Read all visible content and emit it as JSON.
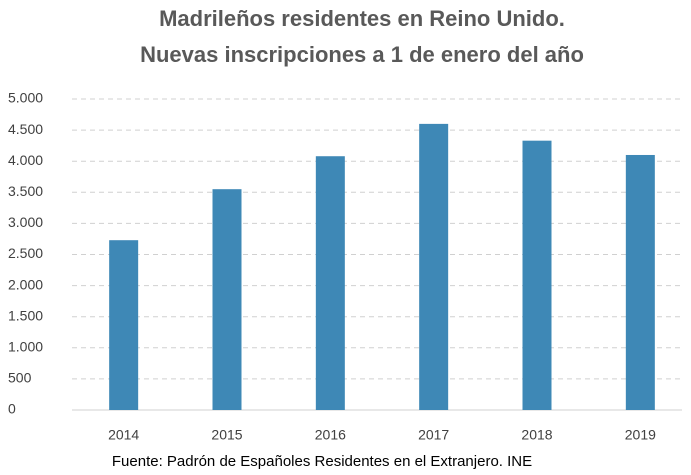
{
  "chart_data": {
    "type": "bar",
    "title": [
      "Madrileños residentes en Reino Unido.",
      "Nuevas inscripciones a 1 de enero del año"
    ],
    "categories": [
      "2014",
      "2015",
      "2016",
      "2017",
      "2018",
      "2019"
    ],
    "values": [
      2730,
      3550,
      4080,
      4600,
      4330,
      4100
    ],
    "color": "#3e88b6",
    "ylim": [
      0,
      5000
    ],
    "yticks": [
      0,
      500,
      {
        "value": 1000,
        "label": "1.000"
      },
      {
        "value": 1500,
        "label": "1.500"
      },
      {
        "value": 2000,
        "label": "2.000"
      },
      {
        "value": 2500,
        "label": "2.500"
      },
      {
        "value": 3000,
        "label": "3.000"
      },
      {
        "value": 3500,
        "label": "3.500"
      },
      {
        "value": 4000,
        "label": "4.000"
      },
      {
        "value": 4500,
        "label": "4.500"
      },
      {
        "value": 5000,
        "label": "5.000"
      }
    ],
    "grid": true,
    "source": "Fuente: Padrón de Españoles Residentes en el Extranjero. INE"
  }
}
